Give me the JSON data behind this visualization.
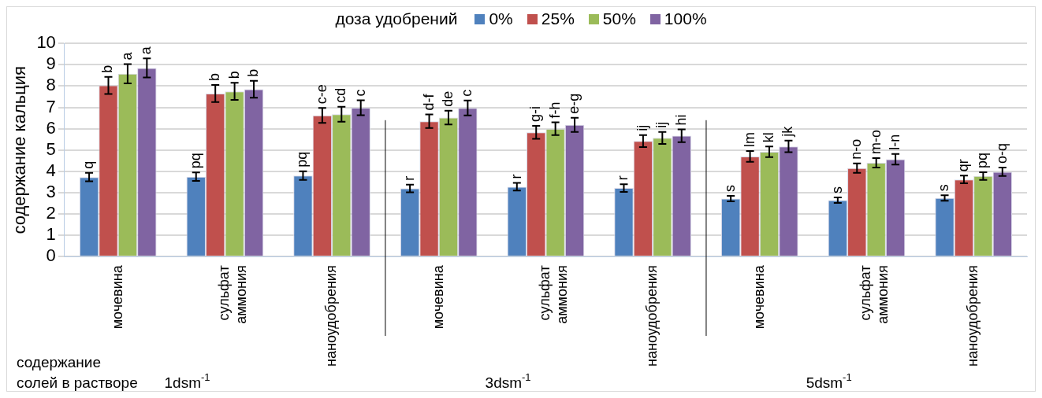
{
  "chart_data": {
    "type": "bar",
    "ylabel": "содержание кальция",
    "xlabel": "содержание солей в растворе",
    "legend_title": "доза удобрений",
    "legend": "top",
    "grid": "y",
    "categories": [
      "мочевина",
      "сульфат аммония",
      "наноудобрения",
      "мочевина",
      "сульфат аммония",
      "наноудобрения",
      "мочевина",
      "сульфат аммония",
      "наноудобрения"
    ],
    "annotations": [
      "1dsm$^{-1}$",
      "3dsm$^{-1}$",
      "5dsm$^{-1}$"
    ],
    "ylim": [
      0,
      10
    ],
    "yticks": [
      0,
      1,
      2,
      3,
      4,
      5,
      6,
      7,
      8,
      9,
      10
    ],
    "series": [
      {
        "name": "0%",
        "color": "#4f81bd",
        "values": [
          3.73,
          3.75,
          3.8,
          3.2,
          3.28,
          3.22,
          2.72,
          2.65,
          2.75
        ],
        "errors": [
          0.2,
          0.2,
          0.2,
          0.18,
          0.18,
          0.18,
          0.13,
          0.13,
          0.13
        ],
        "value_labels": [
          "q",
          "pq",
          "pq",
          "r",
          "r",
          "r",
          "s",
          "s",
          "s"
        ]
      },
      {
        "name": "25%",
        "color": "#c0504d",
        "values": [
          8.03,
          7.65,
          6.62,
          6.35,
          5.83,
          5.42,
          4.7,
          4.15,
          3.62
        ],
        "errors": [
          0.4,
          0.4,
          0.35,
          0.32,
          0.3,
          0.28,
          0.25,
          0.22,
          0.18
        ],
        "value_labels": [
          "b",
          "b",
          "c-e",
          "d-f",
          "g-i",
          "ij",
          "lm",
          "n-o",
          "qr"
        ]
      },
      {
        "name": "50%",
        "color": "#9bbb59",
        "values": [
          8.58,
          7.75,
          6.68,
          6.52,
          6.0,
          5.57,
          4.92,
          4.4,
          3.78
        ],
        "errors": [
          0.45,
          0.4,
          0.35,
          0.32,
          0.3,
          0.28,
          0.25,
          0.22,
          0.18
        ],
        "value_labels": [
          "a",
          "b",
          "cd",
          "de",
          "f-h",
          "ij",
          "kl",
          "m-o",
          "pq"
        ]
      },
      {
        "name": "100%",
        "color": "#8064a2",
        "values": [
          8.85,
          7.85,
          6.98,
          6.97,
          6.18,
          5.67,
          5.17,
          4.57,
          3.98
        ],
        "errors": [
          0.45,
          0.4,
          0.35,
          0.35,
          0.33,
          0.3,
          0.27,
          0.25,
          0.2
        ],
        "value_labels": [
          "a",
          "b",
          "c",
          "c",
          "e-g",
          "hi",
          "jk",
          "l-n",
          "o-q"
        ]
      }
    ]
  }
}
